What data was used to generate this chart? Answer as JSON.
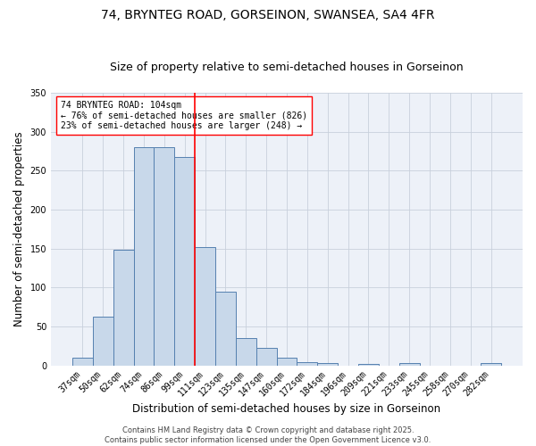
{
  "title_line1": "74, BRYNTEG ROAD, GORSEINON, SWANSEA, SA4 4FR",
  "title_line2": "Size of property relative to semi-detached houses in Gorseinon",
  "xlabel": "Distribution of semi-detached houses by size in Gorseinon",
  "ylabel": "Number of semi-detached properties",
  "bin_labels": [
    "37sqm",
    "50sqm",
    "62sqm",
    "74sqm",
    "86sqm",
    "99sqm",
    "111sqm",
    "123sqm",
    "135sqm",
    "147sqm",
    "160sqm",
    "172sqm",
    "184sqm",
    "196sqm",
    "209sqm",
    "221sqm",
    "233sqm",
    "245sqm",
    "258sqm",
    "270sqm",
    "282sqm"
  ],
  "bar_values": [
    10,
    63,
    148,
    280,
    280,
    268,
    152,
    95,
    35,
    23,
    10,
    4,
    3,
    0,
    2,
    0,
    3,
    0,
    0,
    0,
    3
  ],
  "bar_color": "#c8d8ea",
  "bar_edge_color": "#5580b0",
  "vline_x_index": 6,
  "vline_color": "red",
  "annotation_box_text": "74 BRYNTEG ROAD: 104sqm\n← 76% of semi-detached houses are smaller (826)\n23% of semi-detached houses are larger (248) →",
  "annotation_box_color": "red",
  "annotation_box_bg": "white",
  "ylim": [
    0,
    350
  ],
  "yticks": [
    0,
    50,
    100,
    150,
    200,
    250,
    300,
    350
  ],
  "grid_color": "#c8d0dc",
  "background_color": "#edf1f8",
  "footer_text": "Contains HM Land Registry data © Crown copyright and database right 2025.\nContains public sector information licensed under the Open Government Licence v3.0.",
  "title_fontsize": 10,
  "subtitle_fontsize": 9,
  "axis_label_fontsize": 8.5,
  "tick_fontsize": 7,
  "annotation_fontsize": 7,
  "footer_fontsize": 6
}
